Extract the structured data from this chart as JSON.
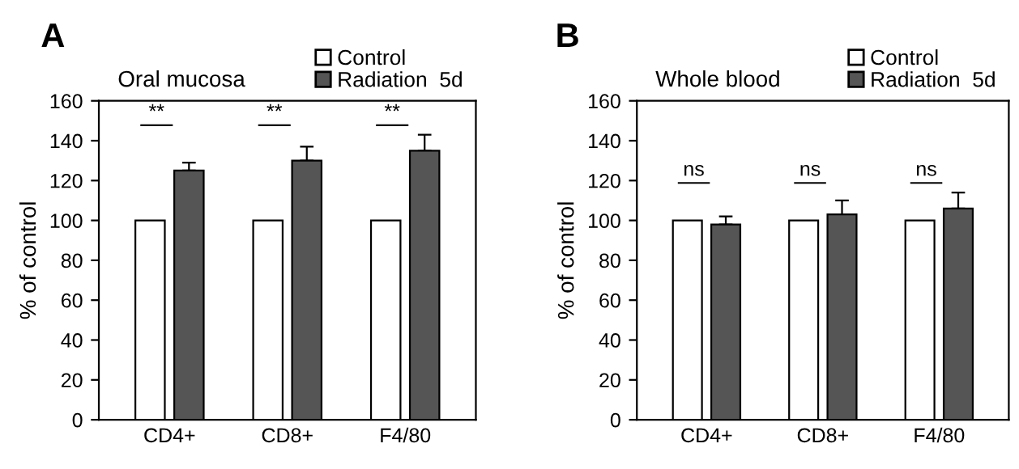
{
  "chart_data": [
    {
      "type": "bar",
      "title": "A",
      "subtitle": "Oral mucosa",
      "ylabel": "% of control",
      "categories": [
        "CD4+",
        "CD8+",
        "F4/80"
      ],
      "series": [
        {
          "name": "Control",
          "color": "#ffffff",
          "values": [
            100,
            100,
            100
          ]
        },
        {
          "name": "Radiation  5d",
          "color": "#555555",
          "values": [
            125,
            130,
            135
          ],
          "errors": [
            [
              125,
              129
            ],
            [
              130,
              137
            ],
            [
              135,
              143
            ]
          ]
        }
      ],
      "ylim": [
        0,
        160
      ],
      "yticks": [
        0,
        20,
        40,
        60,
        80,
        100,
        120,
        140,
        160
      ],
      "legend": "top right",
      "grid": false,
      "annotations": [
        "**",
        "**",
        "**"
      ]
    },
    {
      "type": "bar",
      "title": "B",
      "subtitle": "Whole blood",
      "ylabel": "% of control",
      "categories": [
        "CD4+",
        "CD8+",
        "F4/80"
      ],
      "series": [
        {
          "name": "Control",
          "color": "#ffffff",
          "values": [
            100,
            100,
            100
          ]
        },
        {
          "name": "Radiation  5d",
          "color": "#555555",
          "values": [
            98,
            103,
            106
          ],
          "errors": [
            [
              98,
              102
            ],
            [
              103,
              110
            ],
            [
              106,
              114
            ]
          ]
        }
      ],
      "ylim": [
        0,
        160
      ],
      "yticks": [
        0,
        20,
        40,
        60,
        80,
        100,
        120,
        140,
        160
      ],
      "legend": "top right",
      "grid": false,
      "annotations": [
        "ns",
        "ns",
        "ns"
      ]
    }
  ]
}
